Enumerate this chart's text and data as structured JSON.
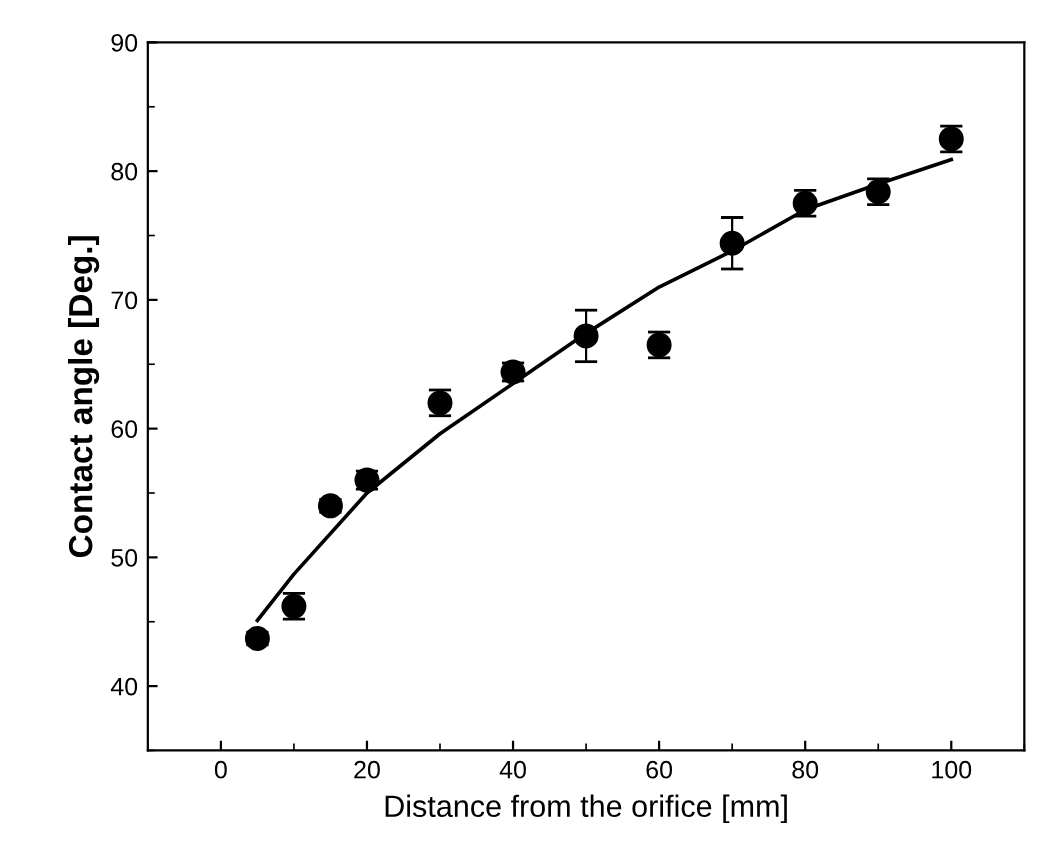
{
  "chart_data": {
    "type": "scatter",
    "xlabel": "Distance from the orifice [mm]",
    "ylabel": "Contact angle [Deg.]",
    "xlim": [
      -10,
      110
    ],
    "xticks": [
      0,
      20,
      40,
      60,
      80,
      100
    ],
    "ylim": [
      35,
      90
    ],
    "yticks": [
      40,
      50,
      60,
      70,
      80,
      90
    ],
    "grid": false,
    "legend": false,
    "series": [
      {
        "color": "#000000",
        "marker": "circle",
        "x": [
          5,
          10,
          15,
          20,
          30,
          40,
          50,
          60,
          70,
          80,
          90,
          100
        ],
        "values": [
          43.7,
          46.2,
          54.0,
          56.0,
          62.0,
          64.4,
          67.2,
          66.5,
          74.4,
          77.5,
          78.4,
          82.5
        ],
        "errors": [
          0.5,
          1.0,
          0.5,
          0.7,
          1.0,
          0.7,
          2.0,
          1.0,
          2.0,
          1.0,
          1.0,
          1.0
        ]
      },
      {
        "type": "line",
        "color": "#000000",
        "marker": "none",
        "line_style": "solid",
        "x": [
          5,
          10,
          20,
          30,
          40,
          50,
          60,
          70,
          80,
          90,
          100
        ],
        "values": [
          45.1,
          48.7,
          55.0,
          59.6,
          63.5,
          67.4,
          71.0,
          73.8,
          77.0,
          79.0,
          80.9
        ]
      }
    ]
  }
}
